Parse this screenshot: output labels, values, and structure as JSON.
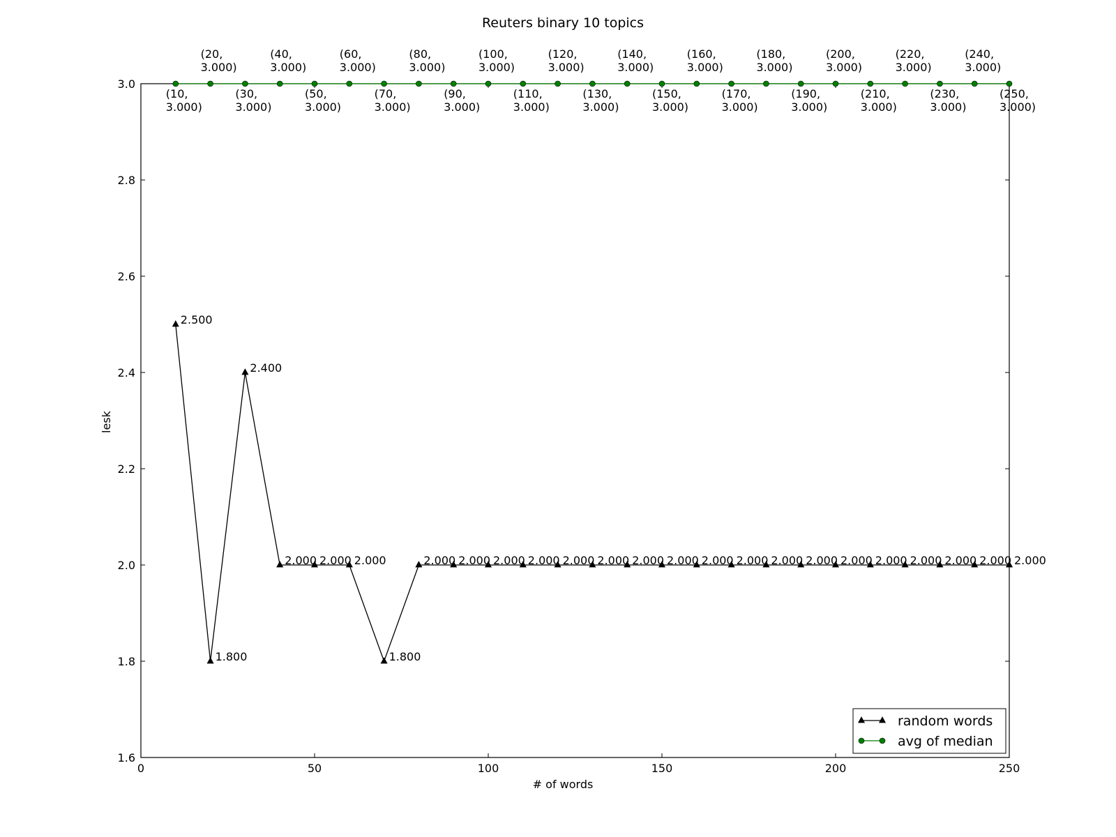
{
  "chart_data": {
    "type": "line",
    "title": "Reuters binary  10 topics",
    "xlabel": "# of words",
    "ylabel": "lesk",
    "xlim": [
      0,
      250
    ],
    "ylim": [
      1.6,
      3.0
    ],
    "xticks": [
      0,
      50,
      100,
      150,
      200,
      250
    ],
    "yticks": [
      "1.6",
      "1.8",
      "2.0",
      "2.2",
      "2.4",
      "2.6",
      "2.8",
      "3.0"
    ],
    "legend_position": "lower-right",
    "series": [
      {
        "name": "random words",
        "color": "#000000",
        "marker": "triangle",
        "label_style": "value",
        "x": [
          10,
          20,
          30,
          40,
          50,
          60,
          70,
          80,
          90,
          100,
          110,
          120,
          130,
          140,
          150,
          160,
          170,
          180,
          190,
          200,
          210,
          220,
          230,
          240,
          250
        ],
        "y": [
          2.5,
          1.8,
          2.4,
          2.0,
          2.0,
          2.0,
          1.8,
          2.0,
          2.0,
          2.0,
          2.0,
          2.0,
          2.0,
          2.0,
          2.0,
          2.0,
          2.0,
          2.0,
          2.0,
          2.0,
          2.0,
          2.0,
          2.0,
          2.0,
          2.0
        ],
        "labels": [
          "2.500",
          "1.800",
          "2.400",
          "2.000",
          "2.000",
          "2.000",
          "1.800",
          "2.000",
          "2.000",
          "2.000",
          "2.000",
          "2.000",
          "2.000",
          "2.000",
          "2.000",
          "2.000",
          "2.000",
          "2.000",
          "2.000",
          "2.000",
          "2.000",
          "2.000",
          "2.000",
          "2.000",
          "2.000"
        ]
      },
      {
        "name": "avg of median",
        "color": "#008000",
        "marker": "circle",
        "label_style": "point",
        "x": [
          10,
          20,
          30,
          40,
          50,
          60,
          70,
          80,
          90,
          100,
          110,
          120,
          130,
          140,
          150,
          160,
          170,
          180,
          190,
          200,
          210,
          220,
          230,
          240,
          250
        ],
        "y": [
          3.0,
          3.0,
          3.0,
          3.0,
          3.0,
          3.0,
          3.0,
          3.0,
          3.0,
          3.0,
          3.0,
          3.0,
          3.0,
          3.0,
          3.0,
          3.0,
          3.0,
          3.0,
          3.0,
          3.0,
          3.0,
          3.0,
          3.0,
          3.0,
          3.0
        ],
        "labels": [
          [
            "(10,",
            "3.000)"
          ],
          [
            "(20,",
            "3.000)"
          ],
          [
            "(30,",
            "3.000)"
          ],
          [
            "(40,",
            "3.000)"
          ],
          [
            "(50,",
            "3.000)"
          ],
          [
            "(60,",
            "3.000)"
          ],
          [
            "(70,",
            "3.000)"
          ],
          [
            "(80,",
            "3.000)"
          ],
          [
            "(90,",
            "3.000)"
          ],
          [
            "(100,",
            "3.000)"
          ],
          [
            "(110,",
            "3.000)"
          ],
          [
            "(120,",
            "3.000)"
          ],
          [
            "(130,",
            "3.000)"
          ],
          [
            "(140,",
            "3.000)"
          ],
          [
            "(150,",
            "3.000)"
          ],
          [
            "(160,",
            "3.000)"
          ],
          [
            "(170,",
            "3.000)"
          ],
          [
            "(180,",
            "3.000)"
          ],
          [
            "(190,",
            "3.000)"
          ],
          [
            "(200,",
            "3.000)"
          ],
          [
            "(210,",
            "3.000)"
          ],
          [
            "(220,",
            "3.000)"
          ],
          [
            "(230,",
            "3.000)"
          ],
          [
            "(240,",
            "3.000)"
          ],
          [
            "(250,",
            "3.000)"
          ]
        ]
      }
    ]
  }
}
